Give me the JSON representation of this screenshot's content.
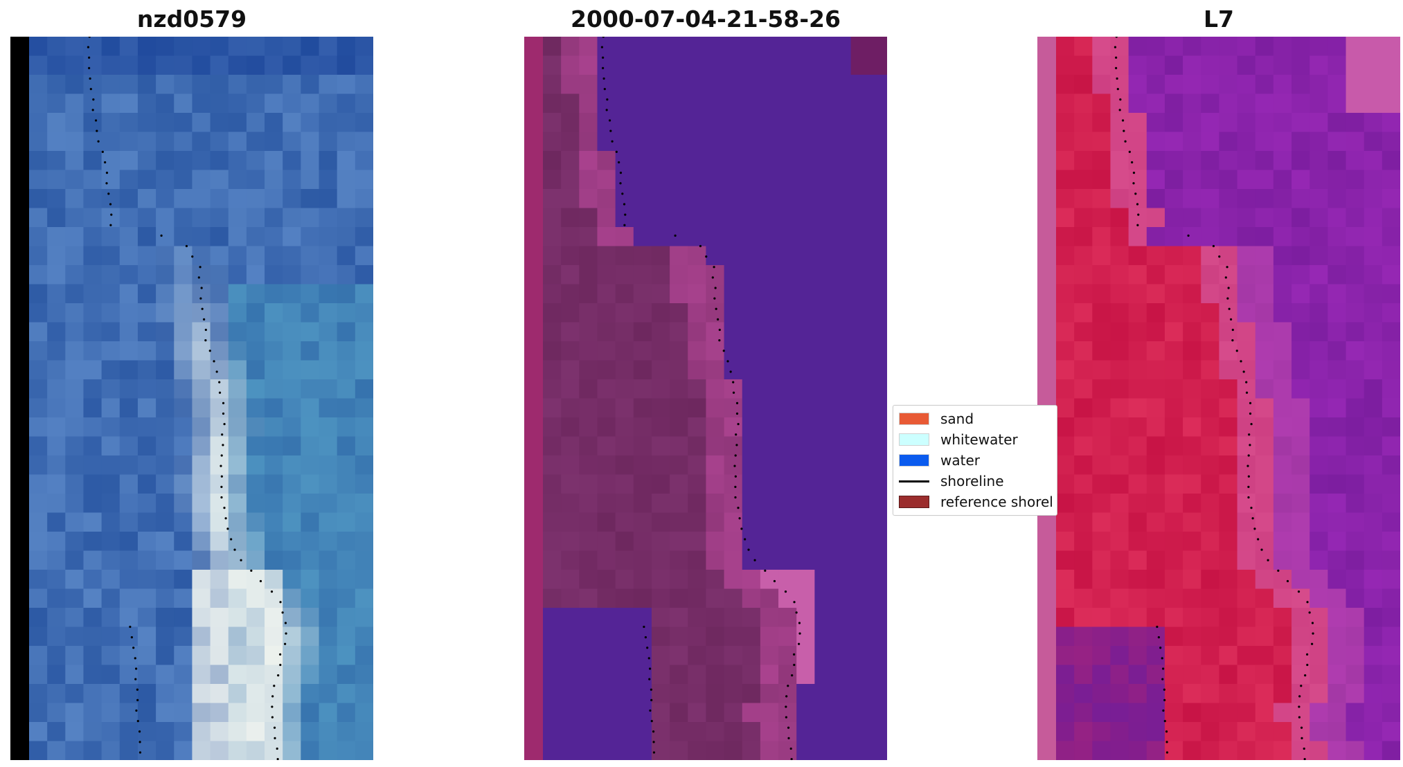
{
  "panels": {
    "p1": {
      "title": "nzd0579"
    },
    "p2": {
      "title": "2000-07-04-21-58-26"
    },
    "p3": {
      "title": "L7"
    }
  },
  "legend": {
    "items": [
      {
        "label": "sand",
        "color": "#e85a35",
        "kind": "patch"
      },
      {
        "label": "whitewater",
        "color": "#ccffff",
        "kind": "patch"
      },
      {
        "label": "water",
        "color": "#0b5bee",
        "kind": "patch"
      },
      {
        "label": "shoreline",
        "color": "#000000",
        "kind": "line"
      },
      {
        "label": "reference shorel",
        "color": "#9b2d2d",
        "kind": "patch"
      }
    ]
  }
}
